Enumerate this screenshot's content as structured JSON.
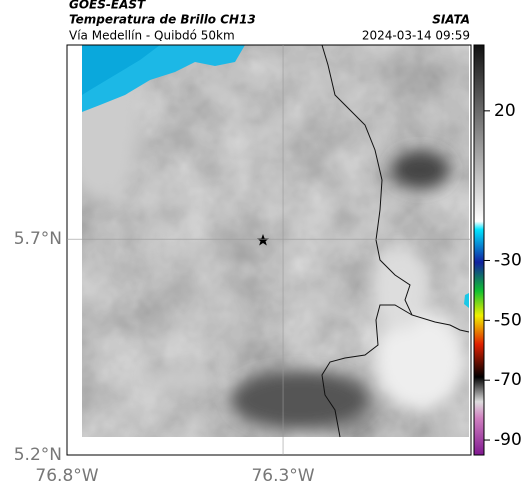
{
  "header": {
    "title": "GOES-EAST",
    "subtitle": "Temperatura de Brillo CH13",
    "route": "Vía Medellín - Quibdó 50km",
    "source": "SIATA",
    "timestamp": "2024-03-14 09:59"
  },
  "map": {
    "xlim": [
      -76.8,
      -75.865
    ],
    "ylim": [
      5.2,
      6.15
    ],
    "xticks": [
      {
        "value": -76.8,
        "label": "76.8°W"
      },
      {
        "value": -76.3,
        "label": "76.3°W"
      }
    ],
    "yticks": [
      {
        "value": 5.7,
        "label": "5.7°N"
      },
      {
        "value": 5.2,
        "label": "5.2°N"
      }
    ]
  },
  "colorbar": {
    "clim": [
      -95,
      42
    ],
    "ticks": [
      20,
      -30,
      -50,
      -70,
      -90
    ]
  }
}
